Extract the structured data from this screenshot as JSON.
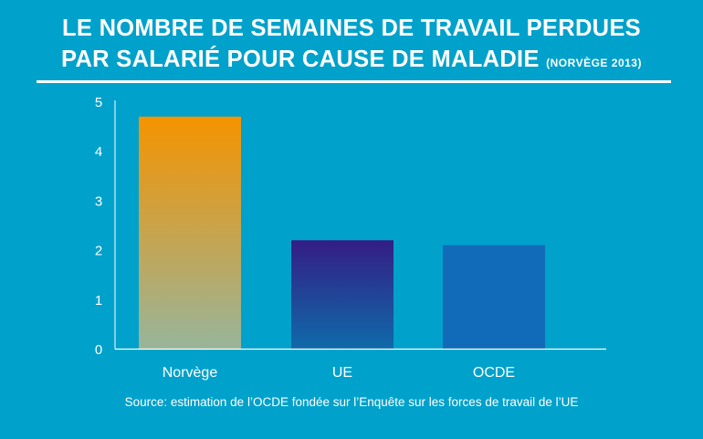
{
  "title": {
    "line1": "LE NOMBRE DE SEMAINES DE TRAVAIL PERDUES",
    "line2": "PAR SALARIÉ POUR CAUSE DE MALADIE",
    "note": "(NORVÈGE 2013)"
  },
  "source": "Source: estimation de l’OCDE fondée sur l’Enquête sur les forces de travail de l’UE",
  "chart_data": {
    "type": "bar",
    "title": "LE NOMBRE DE SEMAINES DE TRAVAIL PERDUES PAR SALARIÉ POUR CAUSE DE MALADIE (NORVÈGE 2013)",
    "categories": [
      "Norvège",
      "UE",
      "OCDE"
    ],
    "values": [
      4.7,
      2.2,
      2.1
    ],
    "ylim": [
      0,
      5
    ],
    "yticks": [
      "0",
      "1",
      "2",
      "3",
      "4",
      "5"
    ],
    "xlabel": "",
    "ylabel": "",
    "grid": false,
    "colors": {
      "background": "#00a1cb",
      "norvege_top": "#f59300",
      "norvege_bottom": "#98b59b",
      "ue_top": "#341d84",
      "ue_bottom": "#0f6aaa",
      "ocde": "#116bb8"
    }
  }
}
